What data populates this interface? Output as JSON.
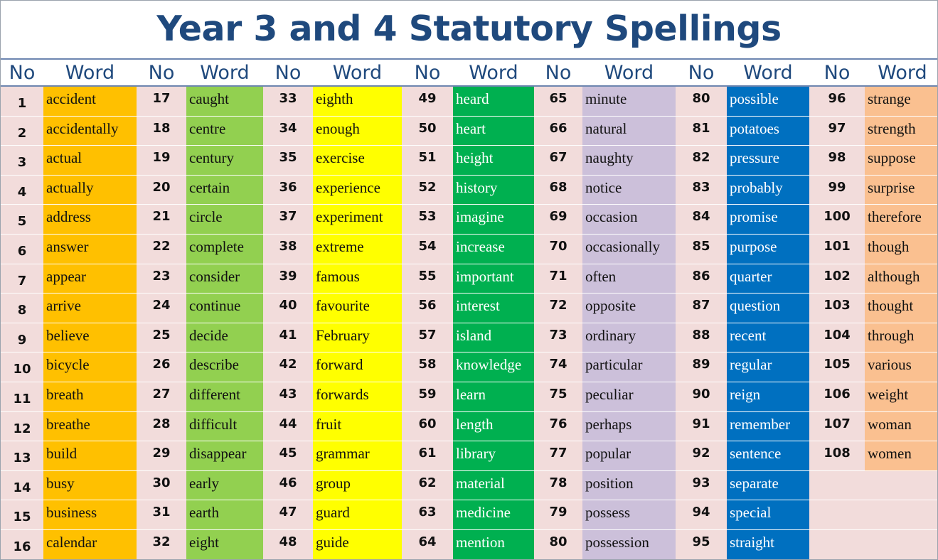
{
  "title": "Year 3 and 4 Statutory Spellings",
  "header": {
    "no_label": "No",
    "word_label": "Word"
  },
  "colors": {
    "row_background": "#f2dcdb",
    "title": "#1f497d"
  },
  "columns": [
    {
      "color": "#ffc000",
      "text_color": "#111111",
      "rows": [
        {
          "no": "1",
          "word": "accident"
        },
        {
          "no": "2",
          "word": "accidentally"
        },
        {
          "no": "3",
          "word": "actual"
        },
        {
          "no": "4",
          "word": "actually"
        },
        {
          "no": "5",
          "word": "address"
        },
        {
          "no": "6",
          "word": "answer"
        },
        {
          "no": "7",
          "word": "appear"
        },
        {
          "no": "8",
          "word": "arrive"
        },
        {
          "no": "9",
          "word": "believe"
        },
        {
          "no": "10",
          "word": "bicycle"
        },
        {
          "no": "11",
          "word": "breath"
        },
        {
          "no": "12",
          "word": "breathe"
        },
        {
          "no": "13",
          "word": "build"
        },
        {
          "no": "14",
          "word": "busy"
        },
        {
          "no": "15",
          "word": "business"
        },
        {
          "no": "16",
          "word": "calendar"
        }
      ]
    },
    {
      "color": "#92d050",
      "text_color": "#111111",
      "rows": [
        {
          "no": "17",
          "word": "caught"
        },
        {
          "no": "18",
          "word": "centre"
        },
        {
          "no": "19",
          "word": "century"
        },
        {
          "no": "20",
          "word": "certain"
        },
        {
          "no": "21",
          "word": "circle"
        },
        {
          "no": "22",
          "word": "complete"
        },
        {
          "no": "23",
          "word": "consider"
        },
        {
          "no": "24",
          "word": "continue"
        },
        {
          "no": "25",
          "word": "decide"
        },
        {
          "no": "26",
          "word": "describe"
        },
        {
          "no": "27",
          "word": "different"
        },
        {
          "no": "28",
          "word": "difficult"
        },
        {
          "no": "29",
          "word": "disappear"
        },
        {
          "no": "30",
          "word": "early"
        },
        {
          "no": "31",
          "word": "earth"
        },
        {
          "no": "32",
          "word": "eight"
        }
      ]
    },
    {
      "color": "#ffff00",
      "text_color": "#111111",
      "rows": [
        {
          "no": "33",
          "word": "eighth"
        },
        {
          "no": "34",
          "word": "enough"
        },
        {
          "no": "35",
          "word": "exercise"
        },
        {
          "no": "36",
          "word": "experience"
        },
        {
          "no": "37",
          "word": "experiment"
        },
        {
          "no": "38",
          "word": "extreme"
        },
        {
          "no": "39",
          "word": "famous"
        },
        {
          "no": "40",
          "word": "favourite"
        },
        {
          "no": "41",
          "word": "February"
        },
        {
          "no": "42",
          "word": "forward"
        },
        {
          "no": "43",
          "word": "forwards"
        },
        {
          "no": "44",
          "word": "fruit"
        },
        {
          "no": "45",
          "word": "grammar"
        },
        {
          "no": "46",
          "word": "group"
        },
        {
          "no": "47",
          "word": "guard"
        },
        {
          "no": "48",
          "word": "guide"
        }
      ]
    },
    {
      "color": "#00b050",
      "text_color": "#ffffff",
      "rows": [
        {
          "no": "49",
          "word": "heard"
        },
        {
          "no": "50",
          "word": "heart"
        },
        {
          "no": "51",
          "word": "height"
        },
        {
          "no": "52",
          "word": "history"
        },
        {
          "no": "53",
          "word": "imagine"
        },
        {
          "no": "54",
          "word": "increase"
        },
        {
          "no": "55",
          "word": "important"
        },
        {
          "no": "56",
          "word": "interest"
        },
        {
          "no": "57",
          "word": "island"
        },
        {
          "no": "58",
          "word": "knowledge"
        },
        {
          "no": "59",
          "word": "learn"
        },
        {
          "no": "60",
          "word": "length"
        },
        {
          "no": "61",
          "word": "library"
        },
        {
          "no": "62",
          "word": "material"
        },
        {
          "no": "63",
          "word": "medicine"
        },
        {
          "no": "64",
          "word": "mention"
        }
      ]
    },
    {
      "color": "#ccc0da",
      "text_color": "#111111",
      "rows": [
        {
          "no": "65",
          "word": "minute"
        },
        {
          "no": "66",
          "word": "natural"
        },
        {
          "no": "67",
          "word": "naughty"
        },
        {
          "no": "68",
          "word": "notice"
        },
        {
          "no": "69",
          "word": "occasion"
        },
        {
          "no": "70",
          "word": "occasionally"
        },
        {
          "no": "71",
          "word": "often"
        },
        {
          "no": "72",
          "word": "opposite"
        },
        {
          "no": "73",
          "word": "ordinary"
        },
        {
          "no": "74",
          "word": "particular"
        },
        {
          "no": "75",
          "word": "peculiar"
        },
        {
          "no": "76",
          "word": "perhaps"
        },
        {
          "no": "77",
          "word": "popular"
        },
        {
          "no": "78",
          "word": "position"
        },
        {
          "no": "79",
          "word": "possess"
        },
        {
          "no": "80",
          "word": "possession"
        }
      ]
    },
    {
      "color": "#0070c0",
      "text_color": "#ffffff",
      "rows": [
        {
          "no": "80",
          "word": "possible"
        },
        {
          "no": "81",
          "word": "potatoes"
        },
        {
          "no": "82",
          "word": "pressure"
        },
        {
          "no": "83",
          "word": "probably"
        },
        {
          "no": "84",
          "word": "promise"
        },
        {
          "no": "85",
          "word": "purpose"
        },
        {
          "no": "86",
          "word": "quarter"
        },
        {
          "no": "87",
          "word": "question"
        },
        {
          "no": "88",
          "word": "recent"
        },
        {
          "no": "89",
          "word": "regular"
        },
        {
          "no": "90",
          "word": "reign"
        },
        {
          "no": "91",
          "word": "remember"
        },
        {
          "no": "92",
          "word": "sentence"
        },
        {
          "no": "93",
          "word": "separate"
        },
        {
          "no": "94",
          "word": "special"
        },
        {
          "no": "95",
          "word": "straight"
        }
      ]
    },
    {
      "color": "#fac090",
      "text_color": "#111111",
      "rows": [
        {
          "no": "96",
          "word": "strange"
        },
        {
          "no": "97",
          "word": "strength"
        },
        {
          "no": "98",
          "word": "suppose"
        },
        {
          "no": "99",
          "word": "surprise"
        },
        {
          "no": "100",
          "word": "therefore"
        },
        {
          "no": "101",
          "word": "though"
        },
        {
          "no": "102",
          "word": "although"
        },
        {
          "no": "103",
          "word": "thought"
        },
        {
          "no": "104",
          "word": "through"
        },
        {
          "no": "105",
          "word": "various"
        },
        {
          "no": "106",
          "word": "weight"
        },
        {
          "no": "107",
          "word": "woman"
        },
        {
          "no": "108",
          "word": "women"
        },
        {
          "no": "",
          "word": ""
        },
        {
          "no": "",
          "word": ""
        },
        {
          "no": "",
          "word": ""
        }
      ]
    }
  ]
}
